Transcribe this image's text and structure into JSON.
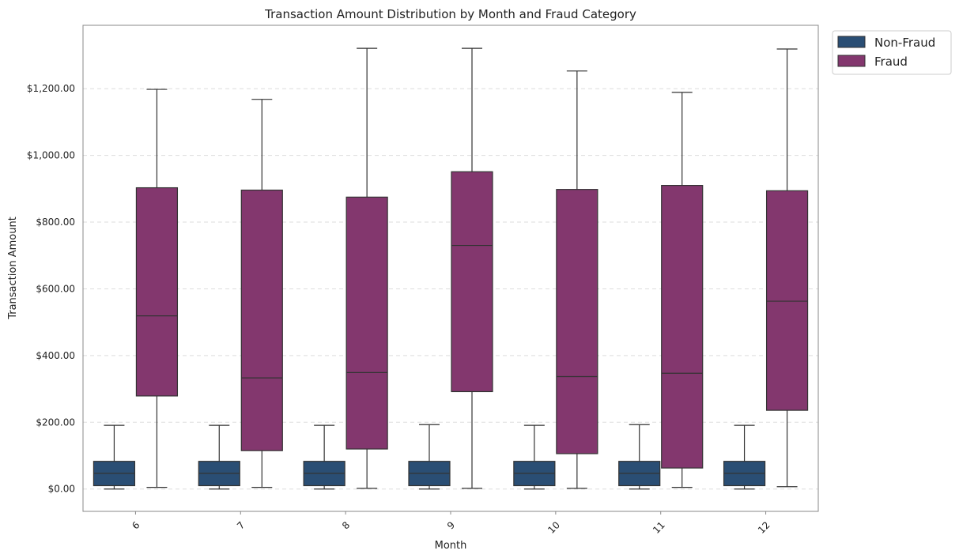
{
  "chart_data": {
    "type": "box",
    "title": "Transaction Amount Distribution by Month and Fraud Category",
    "xlabel": "Month",
    "ylabel": "Transaction Amount",
    "categories": [
      "6",
      "7",
      "8",
      "9",
      "10",
      "11",
      "12"
    ],
    "ylim": [
      -67,
      1390
    ],
    "yticks": [
      0,
      200,
      400,
      600,
      800,
      1000,
      1200
    ],
    "ytick_labels": [
      "$0.00",
      "$200.00",
      "$400.00",
      "$600.00",
      "$800.00",
      "$1,000.00",
      "$1,200.00"
    ],
    "grid": "y-dashed",
    "legend_position": "outside top-right",
    "series": [
      {
        "name": "Non-Fraud",
        "color": "#2a4e74",
        "boxes": [
          {
            "min": 0,
            "q1": 10,
            "median": 47,
            "q3": 83,
            "max": 191
          },
          {
            "min": 0,
            "q1": 10,
            "median": 47,
            "q3": 83,
            "max": 191
          },
          {
            "min": 0,
            "q1": 10,
            "median": 47,
            "q3": 83,
            "max": 191
          },
          {
            "min": 0,
            "q1": 10,
            "median": 47,
            "q3": 83,
            "max": 193
          },
          {
            "min": 0,
            "q1": 10,
            "median": 47,
            "q3": 83,
            "max": 191
          },
          {
            "min": 0,
            "q1": 10,
            "median": 47,
            "q3": 83,
            "max": 193
          },
          {
            "min": 0,
            "q1": 10,
            "median": 47,
            "q3": 83,
            "max": 191
          }
        ]
      },
      {
        "name": "Fraud",
        "color": "#83376e",
        "boxes": [
          {
            "min": 5,
            "q1": 279,
            "median": 519,
            "q3": 903,
            "max": 1198
          },
          {
            "min": 5,
            "q1": 115,
            "median": 333,
            "q3": 896,
            "max": 1168
          },
          {
            "min": 2,
            "q1": 120,
            "median": 349,
            "q3": 875,
            "max": 1321
          },
          {
            "min": 2,
            "q1": 292,
            "median": 730,
            "q3": 951,
            "max": 1321
          },
          {
            "min": 2,
            "q1": 106,
            "median": 337,
            "q3": 898,
            "max": 1253
          },
          {
            "min": 5,
            "q1": 63,
            "median": 347,
            "q3": 910,
            "max": 1189
          },
          {
            "min": 7,
            "q1": 236,
            "median": 563,
            "q3": 894,
            "max": 1319
          }
        ]
      }
    ]
  }
}
